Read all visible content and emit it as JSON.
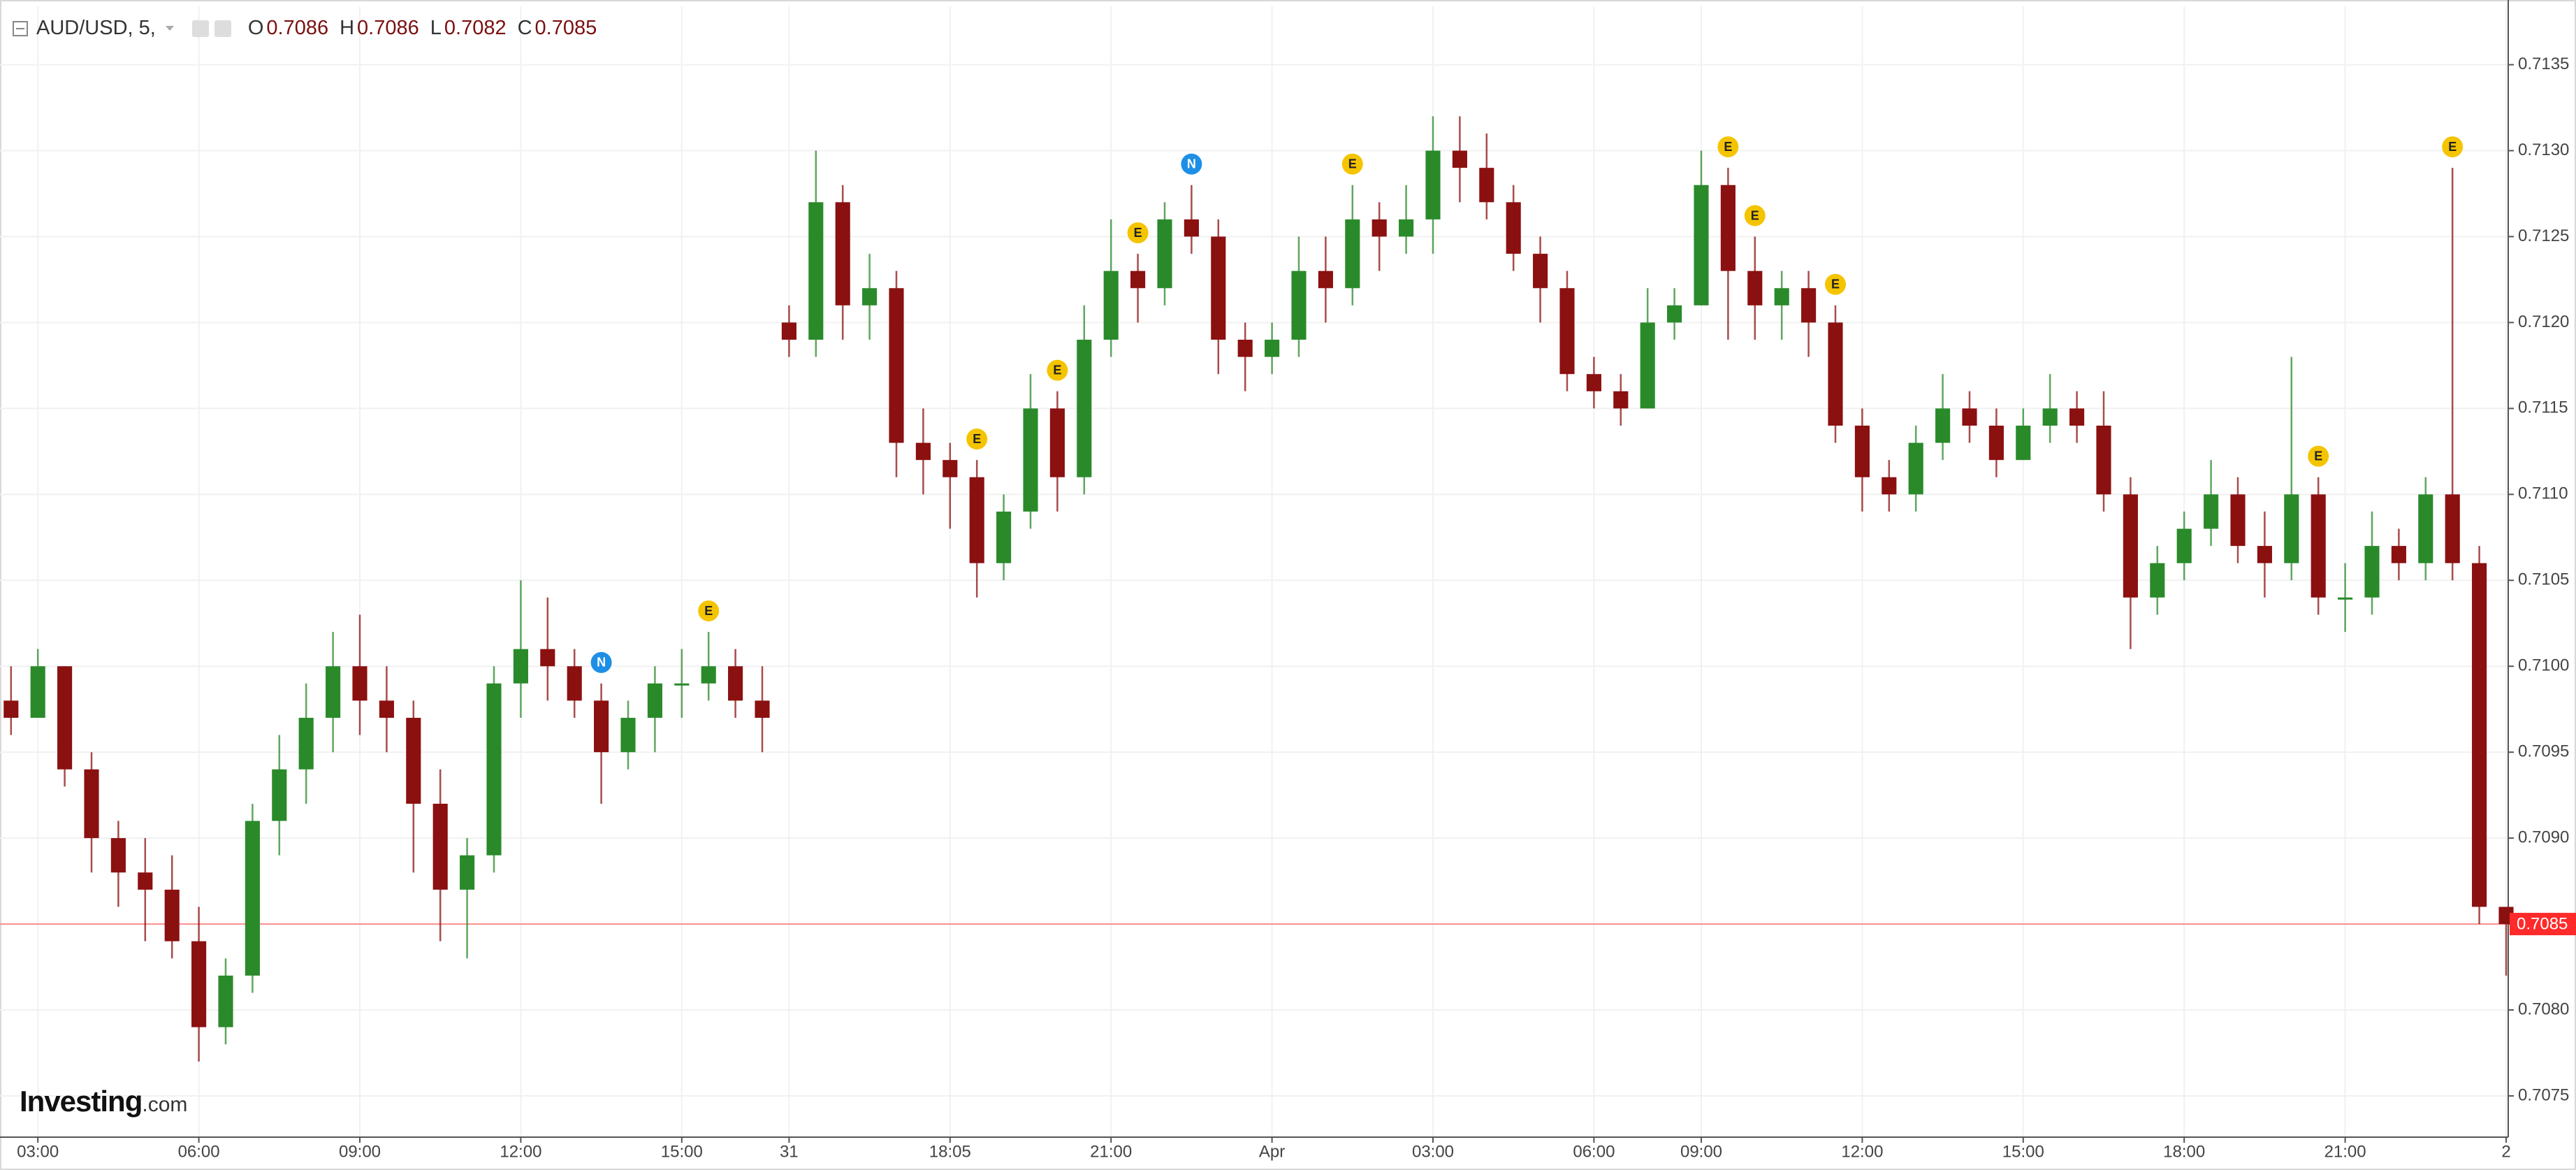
{
  "chart_data": {
    "type": "candlestick",
    "title": "AUD/USD, 5,",
    "ohlc_legend": [
      {
        "key": "O",
        "value": "0.7086"
      },
      {
        "key": "H",
        "value": "0.7086"
      },
      {
        "key": "L",
        "value": "0.7082"
      },
      {
        "key": "C",
        "value": "0.7085"
      }
    ],
    "watermark": {
      "brand": "Investing",
      "suffix": ".com"
    },
    "categories": [
      null,
      "03:00",
      null,
      null,
      null,
      null,
      null,
      "06:00",
      null,
      null,
      null,
      null,
      null,
      "09:00",
      null,
      null,
      null,
      null,
      null,
      "12:00",
      null,
      null,
      null,
      null,
      null,
      "15:00",
      null,
      null,
      null,
      "31",
      null,
      null,
      null,
      null,
      null,
      "18:05",
      null,
      null,
      null,
      null,
      null,
      "21:00",
      null,
      null,
      null,
      null,
      null,
      "Apr",
      null,
      null,
      null,
      null,
      null,
      "03:00",
      null,
      null,
      null,
      null,
      null,
      "06:00",
      null,
      null,
      null,
      "09:00",
      null,
      null,
      null,
      null,
      null,
      "12:00",
      null,
      null,
      null,
      null,
      null,
      "15:00",
      null,
      null,
      null,
      null,
      null,
      "18:00",
      null,
      null,
      null,
      null,
      null,
      "21:00",
      null,
      null,
      null,
      null,
      null,
      "2"
    ],
    "open": [
      0.7098,
      0.7097,
      0.71,
      0.7094,
      0.709,
      0.7088,
      0.7087,
      0.7084,
      0.7079,
      0.7082,
      0.7091,
      0.7094,
      0.7097,
      0.71,
      0.7098,
      0.7097,
      0.7092,
      0.7087,
      0.7089,
      0.7099,
      0.7101,
      0.71,
      0.7098,
      0.7095,
      0.7097,
      0.7099,
      0.7099,
      0.71,
      0.7098,
      0.712,
      0.7119,
      0.7127,
      0.7121,
      0.7122,
      0.7113,
      0.7112,
      0.7111,
      0.7106,
      0.7109,
      0.7115,
      0.7111,
      0.7119,
      0.7123,
      0.7122,
      0.7126,
      0.7125,
      0.7119,
      0.7118,
      0.7119,
      0.7123,
      0.7122,
      0.7126,
      0.7125,
      0.7126,
      0.713,
      0.7129,
      0.7127,
      0.7124,
      0.7122,
      0.7117,
      0.7116,
      0.7115,
      0.712,
      0.7121,
      0.7128,
      0.7123,
      0.7121,
      0.7122,
      0.712,
      0.7114,
      0.7111,
      0.711,
      0.7113,
      0.7115,
      0.7114,
      0.7112,
      0.7114,
      0.7115,
      0.7114,
      0.711,
      0.7104,
      0.7106,
      0.7108,
      0.711,
      0.7107,
      0.7106,
      0.711,
      0.7104,
      0.7104,
      0.7107,
      0.7106,
      0.711,
      0.7106,
      0.7086
    ],
    "high": [
      0.71,
      0.7101,
      0.71,
      0.7095,
      0.7091,
      0.709,
      0.7089,
      0.7086,
      0.7083,
      0.7092,
      0.7096,
      0.7099,
      0.7102,
      0.7103,
      0.71,
      0.7098,
      0.7094,
      0.709,
      0.71,
      0.7105,
      0.7104,
      0.7101,
      0.7099,
      0.7098,
      0.71,
      0.7101,
      0.7102,
      0.7101,
      0.71,
      0.7121,
      0.713,
      0.7128,
      0.7124,
      0.7123,
      0.7115,
      0.7113,
      0.7112,
      0.711,
      0.7117,
      0.7116,
      0.7121,
      0.7126,
      0.7124,
      0.7127,
      0.7128,
      0.7126,
      0.712,
      0.712,
      0.7125,
      0.7125,
      0.7128,
      0.7127,
      0.7128,
      0.7132,
      0.7132,
      0.7131,
      0.7128,
      0.7125,
      0.7123,
      0.7118,
      0.7117,
      0.7122,
      0.7122,
      0.713,
      0.7129,
      0.7125,
      0.7123,
      0.7123,
      0.7121,
      0.7115,
      0.7112,
      0.7114,
      0.7117,
      0.7116,
      0.7115,
      0.7115,
      0.7117,
      0.7116,
      0.7116,
      0.7111,
      0.7107,
      0.7109,
      0.7112,
      0.7111,
      0.7109,
      0.7118,
      0.7111,
      0.7106,
      0.7109,
      0.7108,
      0.7111,
      0.7129,
      0.7107,
      0.7086
    ],
    "low": [
      0.7096,
      0.7097,
      0.7093,
      0.7088,
      0.7086,
      0.7084,
      0.7083,
      0.7077,
      0.7078,
      0.7081,
      0.7089,
      0.7092,
      0.7095,
      0.7096,
      0.7095,
      0.7088,
      0.7084,
      0.7083,
      0.7088,
      0.7097,
      0.7098,
      0.7097,
      0.7092,
      0.7094,
      0.7095,
      0.7097,
      0.7098,
      0.7097,
      0.7095,
      0.7118,
      0.7118,
      0.7119,
      0.7119,
      0.7111,
      0.711,
      0.7108,
      0.7104,
      0.7105,
      0.7108,
      0.7109,
      0.711,
      0.7118,
      0.712,
      0.7121,
      0.7124,
      0.7117,
      0.7116,
      0.7117,
      0.7118,
      0.712,
      0.7121,
      0.7123,
      0.7124,
      0.7124,
      0.7127,
      0.7126,
      0.7123,
      0.712,
      0.7116,
      0.7115,
      0.7114,
      0.7115,
      0.7119,
      0.7121,
      0.7119,
      0.7119,
      0.7119,
      0.7118,
      0.7113,
      0.7109,
      0.7109,
      0.7109,
      0.7112,
      0.7113,
      0.7111,
      0.7112,
      0.7113,
      0.7113,
      0.7109,
      0.7101,
      0.7103,
      0.7105,
      0.7107,
      0.7106,
      0.7104,
      0.7105,
      0.7103,
      0.7102,
      0.7103,
      0.7105,
      0.7105,
      0.7105,
      0.7085,
      0.7082
    ],
    "close": [
      0.7097,
      0.71,
      0.7094,
      0.709,
      0.7088,
      0.7087,
      0.7084,
      0.7079,
      0.7082,
      0.7091,
      0.7094,
      0.7097,
      0.71,
      0.7098,
      0.7097,
      0.7092,
      0.7087,
      0.7089,
      0.7099,
      0.7101,
      0.71,
      0.7098,
      0.7095,
      0.7097,
      0.7099,
      0.7099,
      0.71,
      0.7098,
      0.7097,
      0.7119,
      0.7127,
      0.7121,
      0.7122,
      0.7113,
      0.7112,
      0.7111,
      0.7106,
      0.7109,
      0.7115,
      0.7111,
      0.7119,
      0.7123,
      0.7122,
      0.7126,
      0.7125,
      0.7119,
      0.7118,
      0.7119,
      0.7123,
      0.7122,
      0.7126,
      0.7125,
      0.7126,
      0.713,
      0.7129,
      0.7127,
      0.7124,
      0.7122,
      0.7117,
      0.7116,
      0.7115,
      0.712,
      0.7121,
      0.7128,
      0.7123,
      0.7121,
      0.7122,
      0.712,
      0.7114,
      0.7111,
      0.711,
      0.7113,
      0.7115,
      0.7114,
      0.7112,
      0.7114,
      0.7115,
      0.7114,
      0.711,
      0.7104,
      0.7106,
      0.7108,
      0.711,
      0.7107,
      0.7106,
      0.711,
      0.7104,
      0.7104,
      0.7107,
      0.7106,
      0.711,
      0.7106,
      0.7086,
      0.7085
    ],
    "up_color": "#2a8a2a",
    "down_color": "#8b1010",
    "ylim": [
      0.70726,
      0.71384
    ],
    "yticks": [
      0.7075,
      {
        "value": 0.708,
        "label": "0.7080"
      },
      0.7085,
      {
        "value": 0.709,
        "label": "0.7090"
      },
      0.7095,
      {
        "value": 0.71,
        "label": "0.7100"
      },
      0.7105,
      {
        "value": 0.711,
        "label": "0.7110"
      },
      0.7115,
      {
        "value": 0.712,
        "label": "0.7120"
      },
      0.7125,
      {
        "value": 0.713,
        "label": "0.7130"
      },
      0.7135
    ],
    "grid": true,
    "last_price": 0.7085,
    "last_price_color": "#ff2a2a",
    "event_colors": {
      "E": "#f5c400",
      "N": "#1e8fe6"
    },
    "events": [
      {
        "label": "N",
        "candle": 22
      },
      {
        "label": "E",
        "candle": 26
      },
      {
        "label": "E",
        "candle": 36
      },
      {
        "label": "E",
        "candle": 39
      },
      {
        "label": "E",
        "candle": 42
      },
      {
        "label": "N",
        "candle": 44
      },
      {
        "label": "E",
        "candle": 50
      },
      {
        "label": "E",
        "candle": 64
      },
      {
        "label": "E",
        "candle": 65
      },
      {
        "label": "E",
        "candle": 68
      },
      {
        "label": "E",
        "candle": 86
      },
      {
        "label": "E",
        "candle": 91
      }
    ]
  }
}
